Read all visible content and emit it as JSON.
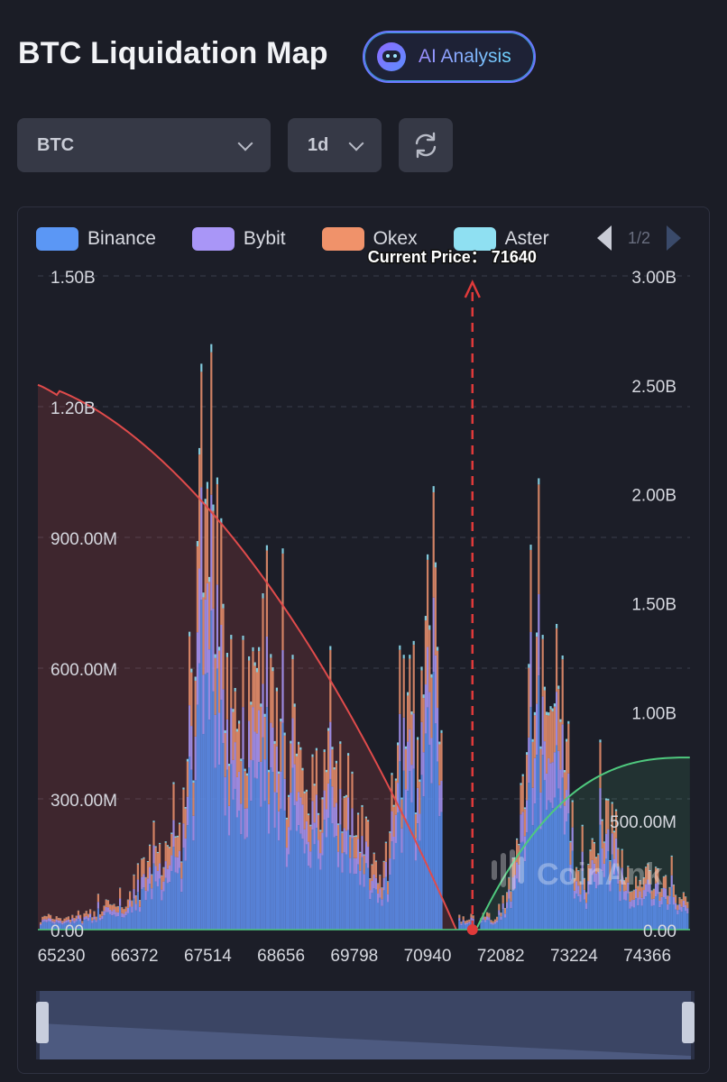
{
  "header": {
    "title": "BTC Liquidation Map",
    "ai_button_label": "AI Analysis"
  },
  "controls": {
    "coin": "BTC",
    "timeframe": "1d"
  },
  "legend": {
    "items": [
      {
        "label": "Binance",
        "color": "#5b97f5"
      },
      {
        "label": "Bybit",
        "color": "#a996f7"
      },
      {
        "label": "Okex",
        "color": "#f0926a"
      },
      {
        "label": "Aster",
        "color": "#8fe0f2"
      }
    ],
    "page": "1/2"
  },
  "chart_data": {
    "type": "bar",
    "current_price_label": "Current Price： 71640",
    "current_price": 71640,
    "watermark": "CoinAnk",
    "x_ticks": [
      "65230",
      "66372",
      "67514",
      "68656",
      "69798",
      "70940",
      "72082",
      "73224",
      "74366"
    ],
    "left_axis": {
      "ticks": [
        "0.00",
        "300.00M",
        "600.00M",
        "900.00M",
        "1.20B",
        "1.50B"
      ],
      "range": [
        0,
        1500000000
      ]
    },
    "right_axis": {
      "ticks": [
        "0.00",
        "500.00M",
        "1.00B",
        "1.50B",
        "2.00B",
        "2.50B",
        "3.00B"
      ],
      "range": [
        0,
        3000000000
      ]
    },
    "grid": "dashed horizontal",
    "series": [
      {
        "name": "Binance",
        "color": "#5b97f5"
      },
      {
        "name": "Bybit",
        "color": "#a996f7"
      },
      {
        "name": "Okex",
        "color": "#f0926a"
      },
      {
        "name": "Aster",
        "color": "#8fe0f2"
      }
    ],
    "cumulative_long_color": "#e04b4b",
    "cumulative_short_color": "#4fc97e",
    "cumulative_long_start": 2500000000,
    "cumulative_short_end": 790000000
  }
}
